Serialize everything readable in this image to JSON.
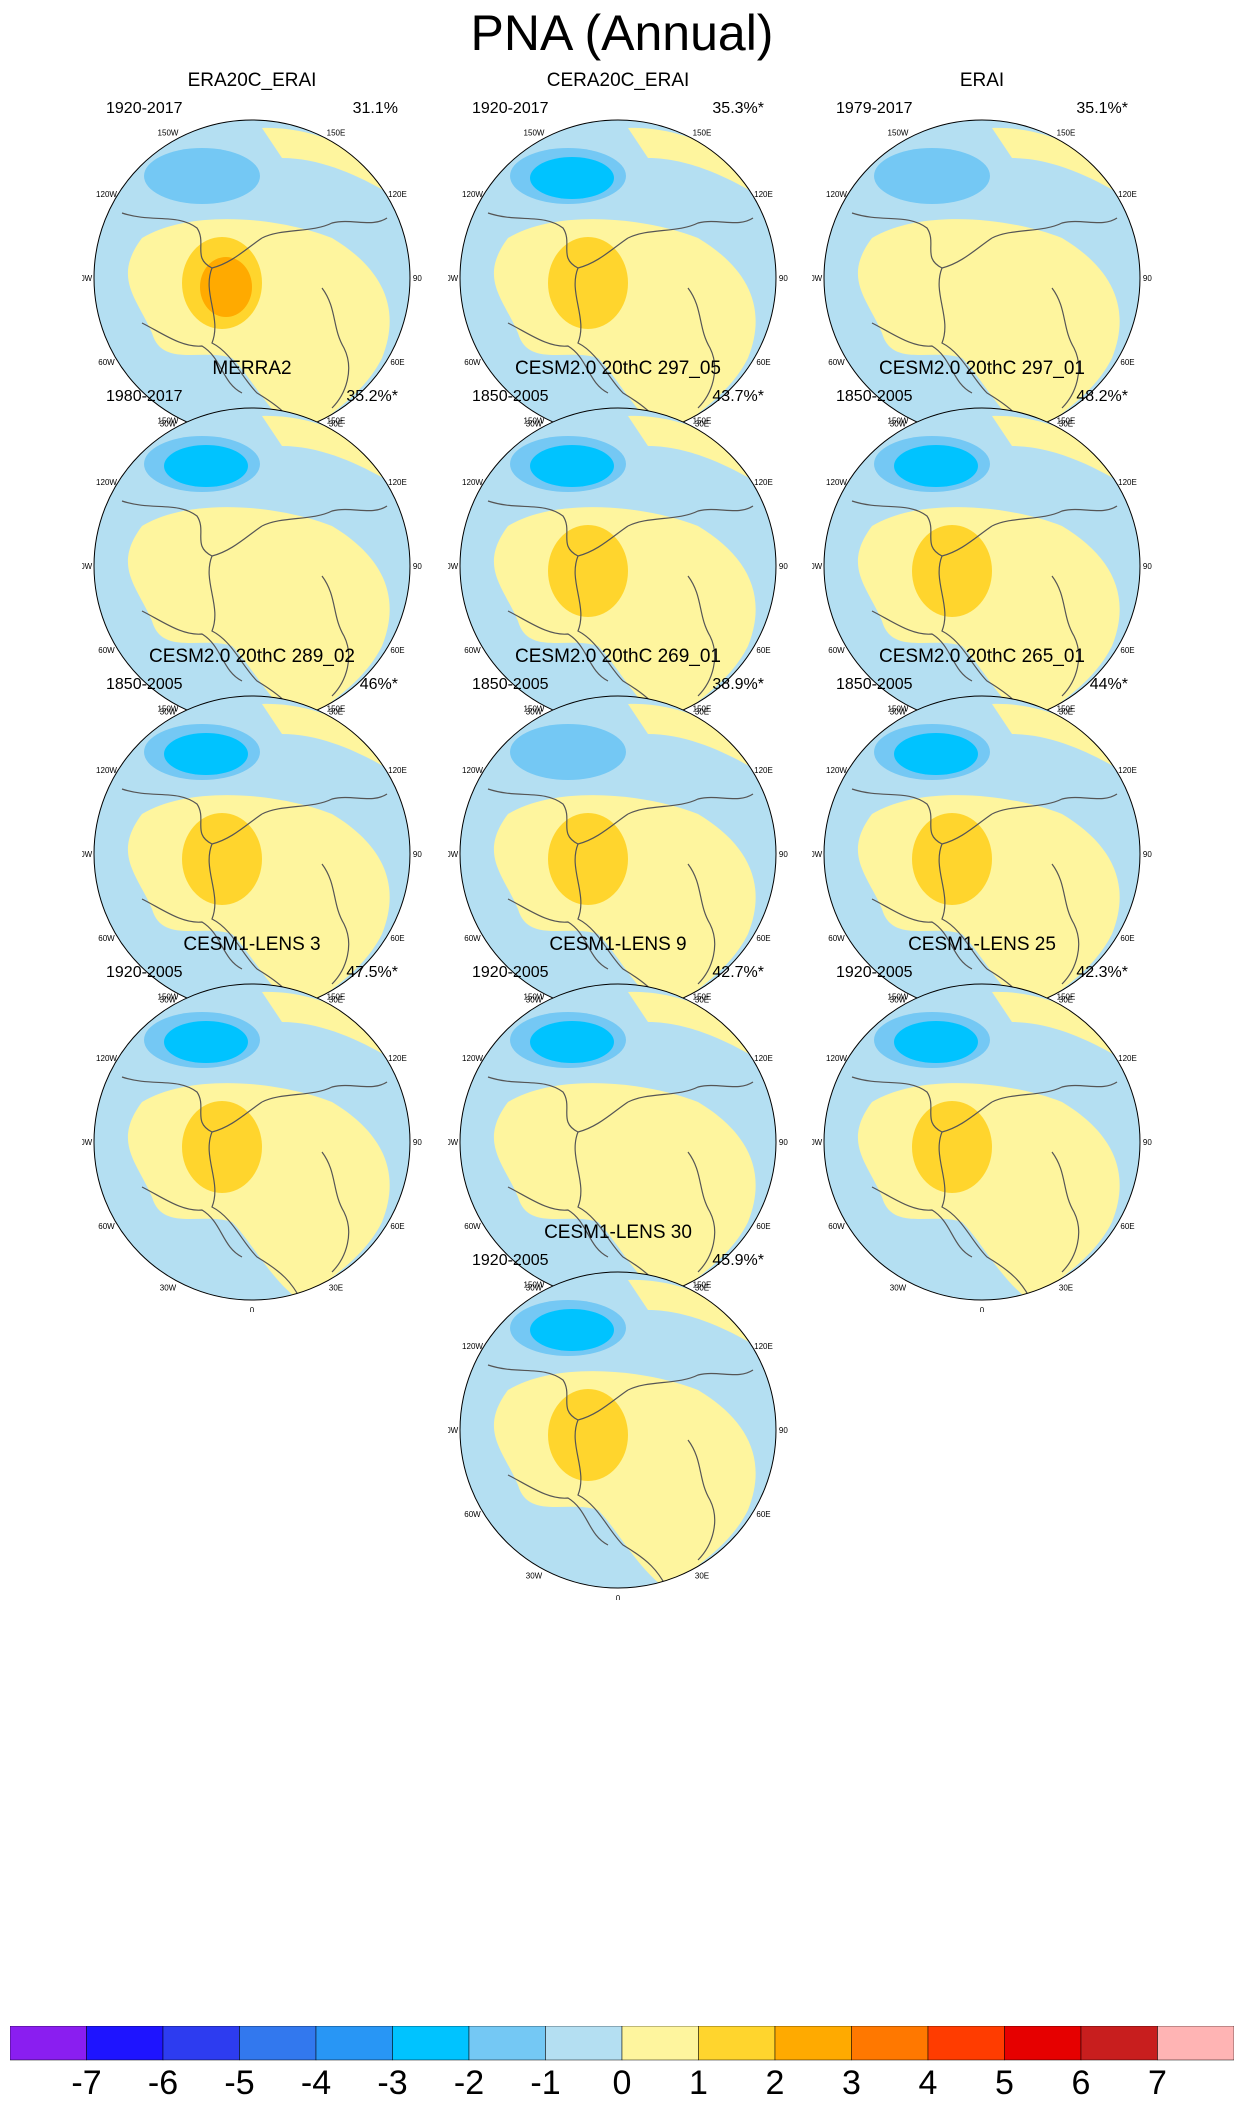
{
  "page": {
    "title": "PNA (Annual)"
  },
  "lon_labels": [
    "180",
    "150E",
    "120E",
    "90E",
    "60E",
    "30E",
    "0",
    "30W",
    "60W",
    "90W",
    "120W",
    "150W"
  ],
  "chart_data": {
    "type": "polar-contour-map",
    "title": "PNA (Annual)",
    "projection": "north-polar-stereographic",
    "colorbar": {
      "levels": [
        -7,
        -6,
        -5,
        -4,
        -3,
        -2,
        -1,
        0,
        1,
        2,
        3,
        4,
        5,
        6,
        7
      ],
      "labels": [
        "-7",
        "-6",
        "-5",
        "-4",
        "-3",
        "-2",
        "-1",
        "0",
        "1",
        "2",
        "3",
        "4",
        "5",
        "6",
        "7"
      ],
      "colors": [
        "#8a1ef0",
        "#1e14ff",
        "#2d3cf0",
        "#3278ee",
        "#2896f5",
        "#00c3ff",
        "#74c8f4",
        "#b4dff2",
        "#fef59e",
        "#ffd52d",
        "#ffaa00",
        "#ff7800",
        "#ff3c00",
        "#e60000",
        "#c81e1e",
        "#ffb4b4"
      ]
    },
    "panels": [
      {
        "title": "ERA20C_ERAI",
        "years": "1920-2017",
        "variance": "31.1%",
        "neg_min": -2,
        "pos_max": 3
      },
      {
        "title": "CERA20C_ERAI",
        "years": "1920-2017",
        "variance": "35.3%*",
        "neg_min": -3,
        "pos_max": 2
      },
      {
        "title": "ERAI",
        "years": "1979-2017",
        "variance": "35.1%*",
        "neg_min": -2,
        "pos_max": 1
      },
      {
        "title": "MERRA2",
        "years": "1980-2017",
        "variance": "35.2%*",
        "neg_min": -3,
        "pos_max": 1
      },
      {
        "title": "CESM2.0 20thC 297_05",
        "years": "1850-2005",
        "variance": "43.7%*",
        "neg_min": -3,
        "pos_max": 2
      },
      {
        "title": "CESM2.0 20thC 297_01",
        "years": "1850-2005",
        "variance": "48.2%*",
        "neg_min": -3,
        "pos_max": 2
      },
      {
        "title": "CESM2.0 20thC 289_02",
        "years": "1850-2005",
        "variance": "46%*",
        "neg_min": -3,
        "pos_max": 2
      },
      {
        "title": "CESM2.0 20thC 269_01",
        "years": "1850-2005",
        "variance": "38.9%*",
        "neg_min": -2,
        "pos_max": 2
      },
      {
        "title": "CESM2.0 20thC 265_01",
        "years": "1850-2005",
        "variance": "44%*",
        "neg_min": -3,
        "pos_max": 2
      },
      {
        "title": "CESM1-LENS 3",
        "years": "1920-2005",
        "variance": "47.5%*",
        "neg_min": -3,
        "pos_max": 2
      },
      {
        "title": "CESM1-LENS 9",
        "years": "1920-2005",
        "variance": "42.7%*",
        "neg_min": -3,
        "pos_max": 1
      },
      {
        "title": "CESM1-LENS 25",
        "years": "1920-2005",
        "variance": "42.3%*",
        "neg_min": -3,
        "pos_max": 2
      },
      {
        "title": "CESM1-LENS 30",
        "years": "1920-2005",
        "variance": "45.9%*",
        "neg_min": -3,
        "pos_max": 2
      }
    ]
  }
}
